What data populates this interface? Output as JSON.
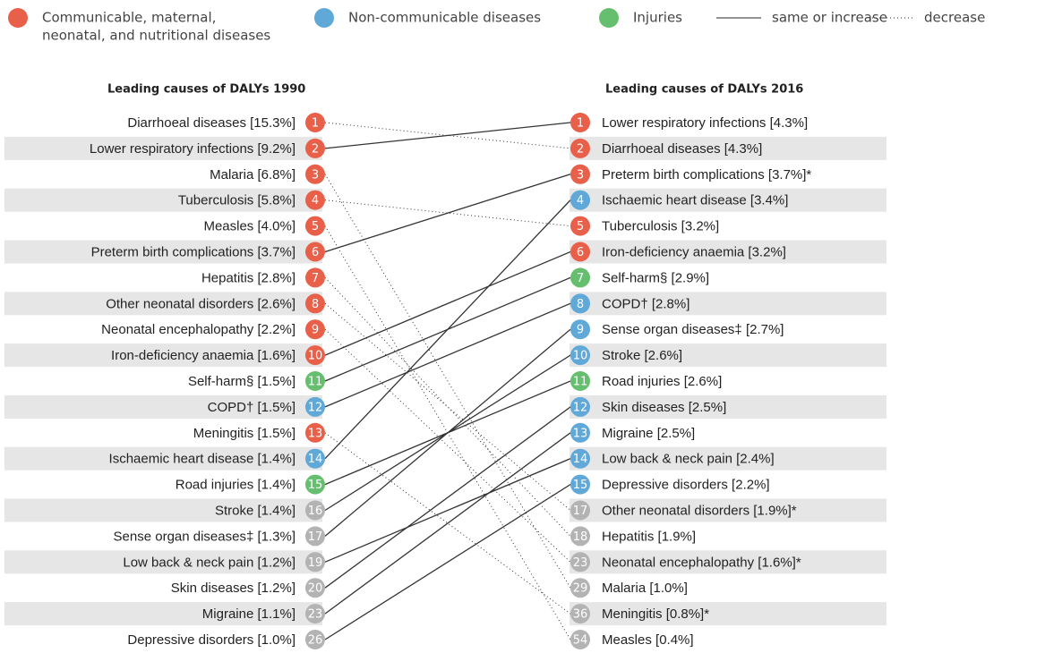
{
  "legend": [
    {
      "label": "Communicable, maternal,",
      "label2": "neonatal, and nutritional diseases",
      "color": "#e8604a"
    },
    {
      "label": "Non-communicable diseases",
      "color": "#5fa8d8"
    },
    {
      "label": "Injuries",
      "color": "#66bf6e"
    },
    {
      "label": "same or increase",
      "style": "solid"
    },
    {
      "label": "decrease",
      "style": "dotted"
    }
  ],
  "left": {
    "title": "Leading causes of DALYs 1990",
    "rows": [
      {
        "label": "Diarrhoeal diseases [15.3%]",
        "rank": 1,
        "color": "#e8604a"
      },
      {
        "label": "Lower respiratory infections [9.2%]",
        "rank": 2,
        "color": "#e8604a"
      },
      {
        "label": "Malaria [6.8%]",
        "rank": 3,
        "color": "#e8604a"
      },
      {
        "label": "Tuberculosis [5.8%]",
        "rank": 4,
        "color": "#e8604a"
      },
      {
        "label": "Measles [4.0%]",
        "rank": 5,
        "color": "#e8604a"
      },
      {
        "label": "Preterm birth complications [3.7%]",
        "rank": 6,
        "color": "#e8604a"
      },
      {
        "label": "Hepatitis [2.8%]",
        "rank": 7,
        "color": "#e8604a"
      },
      {
        "label": "Other neonatal disorders [2.6%]",
        "rank": 8,
        "color": "#e8604a"
      },
      {
        "label": "Neonatal encephalopathy [2.2%]",
        "rank": 9,
        "color": "#e8604a"
      },
      {
        "label": "Iron-deficiency anaemia [1.6%]",
        "rank": 10,
        "color": "#e8604a"
      },
      {
        "label": "Self-harm§ [1.5%]",
        "rank": 11,
        "color": "#66bf6e"
      },
      {
        "label": "COPD† [1.5%]",
        "rank": 12,
        "color": "#5fa8d8"
      },
      {
        "label": "Meningitis [1.5%]",
        "rank": 13,
        "color": "#e8604a"
      },
      {
        "label": "Ischaemic heart disease [1.4%]",
        "rank": 14,
        "color": "#5fa8d8"
      },
      {
        "label": "Road injuries [1.4%]",
        "rank": 15,
        "color": "#66bf6e"
      },
      {
        "label": "Stroke [1.4%]",
        "rank": 16,
        "color": "#b3b3b3"
      },
      {
        "label": "Sense organ diseases‡ [1.3%]",
        "rank": 17,
        "color": "#b3b3b3"
      },
      {
        "label": "Low back & neck pain [1.2%]",
        "rank": 19,
        "color": "#b3b3b3"
      },
      {
        "label": "Skin diseases [1.2%]",
        "rank": 20,
        "color": "#b3b3b3"
      },
      {
        "label": "Migraine [1.1%]",
        "rank": 23,
        "color": "#b3b3b3"
      },
      {
        "label": "Depressive disorders [1.0%]",
        "rank": 26,
        "color": "#b3b3b3"
      }
    ]
  },
  "right": {
    "title": "Leading causes of DALYs 2016",
    "rows": [
      {
        "label": "Lower respiratory infections [4.3%]",
        "rank": 1,
        "color": "#e8604a"
      },
      {
        "label": "Diarrhoeal diseases [4.3%]",
        "rank": 2,
        "color": "#e8604a"
      },
      {
        "label": "Preterm birth complications [3.7%]*",
        "rank": 3,
        "color": "#e8604a"
      },
      {
        "label": "Ischaemic heart disease [3.4%]",
        "rank": 4,
        "color": "#5fa8d8"
      },
      {
        "label": "Tuberculosis [3.2%]",
        "rank": 5,
        "color": "#e8604a"
      },
      {
        "label": "Iron-deficiency anaemia [3.2%]",
        "rank": 6,
        "color": "#e8604a"
      },
      {
        "label": "Self-harm§ [2.9%]",
        "rank": 7,
        "color": "#66bf6e"
      },
      {
        "label": "COPD† [2.8%]",
        "rank": 8,
        "color": "#5fa8d8"
      },
      {
        "label": "Sense organ diseases‡ [2.7%]",
        "rank": 9,
        "color": "#5fa8d8"
      },
      {
        "label": "Stroke [2.6%]",
        "rank": 10,
        "color": "#5fa8d8"
      },
      {
        "label": "Road injuries [2.6%]",
        "rank": 11,
        "color": "#66bf6e"
      },
      {
        "label": "Skin diseases [2.5%]",
        "rank": 12,
        "color": "#5fa8d8"
      },
      {
        "label": "Migraine [2.5%]",
        "rank": 13,
        "color": "#5fa8d8"
      },
      {
        "label": "Low back & neck pain [2.4%]",
        "rank": 14,
        "color": "#5fa8d8"
      },
      {
        "label": "Depressive disorders [2.2%]",
        "rank": 15,
        "color": "#5fa8d8"
      },
      {
        "label": "Other neonatal disorders [1.9%]*",
        "rank": 17,
        "color": "#b3b3b3"
      },
      {
        "label": "Hepatitis [1.9%]",
        "rank": 18,
        "color": "#b3b3b3"
      },
      {
        "label": "Neonatal encephalopathy [1.6%]*",
        "rank": 23,
        "color": "#b3b3b3"
      },
      {
        "label": "Malaria [1.0%]",
        "rank": 29,
        "color": "#b3b3b3"
      },
      {
        "label": "Meningitis [0.8%]*",
        "rank": 36,
        "color": "#b3b3b3"
      },
      {
        "label": "Measles [0.4%]",
        "rank": 54,
        "color": "#b3b3b3"
      }
    ]
  },
  "links": [
    {
      "from": 0,
      "to": 1,
      "style": "dotted"
    },
    {
      "from": 1,
      "to": 0,
      "style": "solid"
    },
    {
      "from": 2,
      "to": 18,
      "style": "dotted"
    },
    {
      "from": 3,
      "to": 4,
      "style": "dotted"
    },
    {
      "from": 4,
      "to": 20,
      "style": "dotted"
    },
    {
      "from": 5,
      "to": 2,
      "style": "solid"
    },
    {
      "from": 6,
      "to": 16,
      "style": "dotted"
    },
    {
      "from": 7,
      "to": 15,
      "style": "dotted"
    },
    {
      "from": 8,
      "to": 17,
      "style": "dotted"
    },
    {
      "from": 9,
      "to": 5,
      "style": "solid"
    },
    {
      "from": 10,
      "to": 6,
      "style": "solid"
    },
    {
      "from": 11,
      "to": 7,
      "style": "solid"
    },
    {
      "from": 12,
      "to": 19,
      "style": "dotted"
    },
    {
      "from": 13,
      "to": 3,
      "style": "solid"
    },
    {
      "from": 14,
      "to": 10,
      "style": "solid"
    },
    {
      "from": 15,
      "to": 9,
      "style": "solid"
    },
    {
      "from": 16,
      "to": 8,
      "style": "solid"
    },
    {
      "from": 17,
      "to": 13,
      "style": "solid"
    },
    {
      "from": 18,
      "to": 11,
      "style": "solid"
    },
    {
      "from": 19,
      "to": 12,
      "style": "solid"
    },
    {
      "from": 20,
      "to": 14,
      "style": "solid"
    }
  ]
}
